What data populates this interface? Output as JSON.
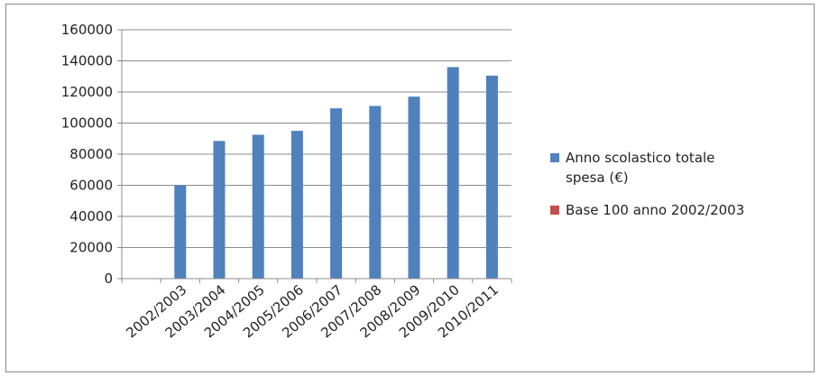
{
  "chart_data": {
    "type": "bar",
    "title": "",
    "xlabel": "",
    "ylabel": "",
    "ylim": [
      0,
      160000
    ],
    "yticks": [
      0,
      20000,
      40000,
      60000,
      80000,
      100000,
      120000,
      140000,
      160000
    ],
    "ytick_labels": [
      "0",
      "20000",
      "40000",
      "60000",
      "80000",
      "100000",
      "120000",
      "140000",
      "160000"
    ],
    "grid": "horizontal",
    "legend_position": "right",
    "categories": [
      "",
      "2002/2003",
      "2003/2004",
      "2004/2005",
      "2005/2006",
      "2006/2007",
      "2007/2008",
      "2008/2009",
      "2009/2010",
      "2010/2011"
    ],
    "series": [
      {
        "name": "Anno scolastico totale spesa (€)",
        "legend_lines": [
          "Anno scolastico totale",
          "spesa (€)"
        ],
        "color": "#4F81BD",
        "values": [
          null,
          60000,
          88500,
          92500,
          95000,
          109500,
          111000,
          117000,
          136000,
          130500
        ]
      },
      {
        "name": "Base 100 anno 2002/2003",
        "legend_lines": [
          "Base 100 anno 2002/2003"
        ],
        "color": "#C0504D",
        "values": [
          null,
          null,
          null,
          null,
          null,
          null,
          null,
          null,
          null,
          null
        ]
      }
    ]
  }
}
